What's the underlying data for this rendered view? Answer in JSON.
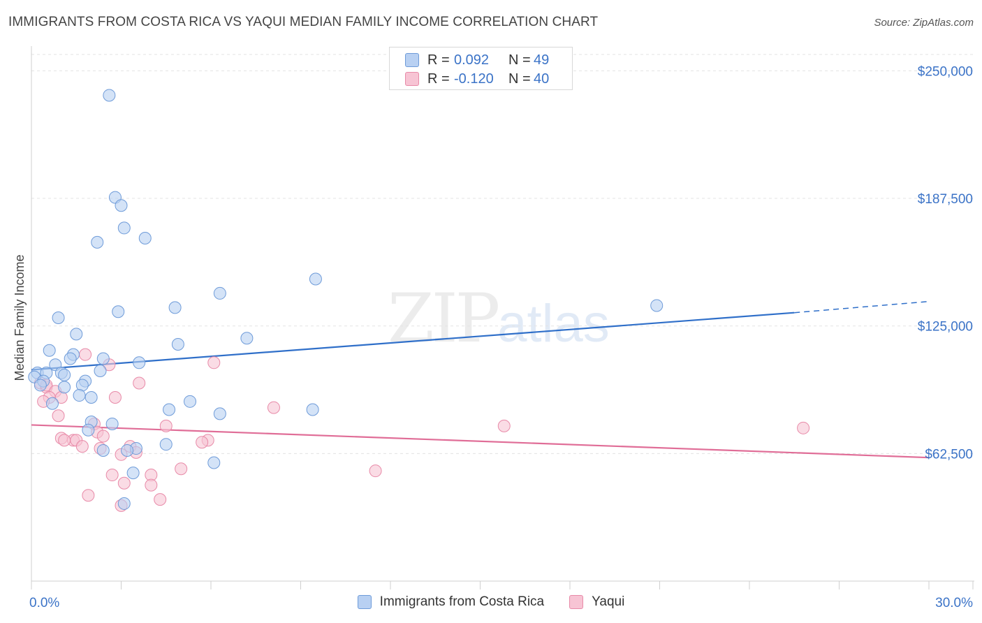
{
  "header": {
    "title": "IMMIGRANTS FROM COSTA RICA VS YAQUI MEDIAN FAMILY INCOME CORRELATION CHART",
    "source": "Source: ZipAtlas.com"
  },
  "watermark": {
    "zip": "ZIP",
    "atlas": "atlas"
  },
  "legend_top": {
    "rows": [
      {
        "r_label": "R =",
        "r_value": "0.092",
        "n_label": "N =",
        "n_value": "49"
      },
      {
        "r_label": "R =",
        "r_value": "-0.120",
        "n_label": "N =",
        "n_value": "40"
      }
    ]
  },
  "legend_bottom": {
    "items": [
      {
        "label": "Immigrants from Costa Rica"
      },
      {
        "label": "Yaqui"
      }
    ]
  },
  "colors": {
    "blue_fill": "#b8d0f2",
    "blue_stroke": "#6e9bd9",
    "blue_line": "#2f6fc9",
    "pink_fill": "#f7c4d4",
    "pink_stroke": "#e88aa8",
    "pink_line": "#e06d97",
    "tick_text": "#3b73c7",
    "grid": "#e3e3e3"
  },
  "chart_data": {
    "type": "scatter",
    "title": "IMMIGRANTS FROM COSTA RICA VS YAQUI MEDIAN FAMILY INCOME CORRELATION CHART",
    "xlabel": "",
    "ylabel": "Median Family Income",
    "xlim": [
      0,
      30
    ],
    "ylim": [
      0,
      258000
    ],
    "x_tick_labels": [
      "0.0%",
      "30.0%"
    ],
    "y_ticks": [
      62500,
      125000,
      187500,
      250000
    ],
    "y_tick_labels": [
      "$62,500",
      "$125,000",
      "$187,500",
      "$250,000"
    ],
    "grid": true,
    "legend_placement": "top-center",
    "series": [
      {
        "name": "Immigrants from Costa Rica",
        "r": 0.092,
        "n": 49,
        "points": [
          [
            2.6,
            238000
          ],
          [
            2.8,
            188000
          ],
          [
            3.0,
            184000
          ],
          [
            3.1,
            173000
          ],
          [
            2.2,
            166000
          ],
          [
            3.8,
            168000
          ],
          [
            9.5,
            148000
          ],
          [
            6.3,
            141000
          ],
          [
            20.9,
            135000
          ],
          [
            4.8,
            134000
          ],
          [
            2.9,
            132000
          ],
          [
            0.9,
            129000
          ],
          [
            1.5,
            121000
          ],
          [
            7.2,
            119000
          ],
          [
            4.9,
            116000
          ],
          [
            0.6,
            113000
          ],
          [
            1.4,
            111000
          ],
          [
            1.3,
            109000
          ],
          [
            2.4,
            109000
          ],
          [
            3.6,
            107000
          ],
          [
            0.8,
            106000
          ],
          [
            2.3,
            103000
          ],
          [
            1.0,
            102000
          ],
          [
            0.2,
            102000
          ],
          [
            0.5,
            102000
          ],
          [
            1.1,
            101000
          ],
          [
            0.1,
            100000
          ],
          [
            0.4,
            98000
          ],
          [
            1.8,
            98000
          ],
          [
            1.7,
            96000
          ],
          [
            0.3,
            96000
          ],
          [
            1.1,
            95000
          ],
          [
            1.6,
            91000
          ],
          [
            2.0,
            90000
          ],
          [
            5.3,
            88000
          ],
          [
            0.7,
            87000
          ],
          [
            9.4,
            84000
          ],
          [
            4.6,
            84000
          ],
          [
            6.3,
            82000
          ],
          [
            2.0,
            78000
          ],
          [
            2.7,
            77000
          ],
          [
            1.9,
            74000
          ],
          [
            4.5,
            67000
          ],
          [
            3.5,
            65000
          ],
          [
            3.2,
            64000
          ],
          [
            2.4,
            64000
          ],
          [
            6.1,
            58000
          ],
          [
            3.4,
            53000
          ],
          [
            3.1,
            38000
          ]
        ],
        "trend": {
          "x": [
            0,
            25.5
          ],
          "y": [
            103500,
            131500
          ],
          "dashed_to_x": 30,
          "dashed_to_y": 137000
        }
      },
      {
        "name": "Yaqui",
        "r": -0.12,
        "n": 40,
        "points": [
          [
            1.8,
            111000
          ],
          [
            2.6,
            106000
          ],
          [
            6.1,
            107000
          ],
          [
            0.3,
            97000
          ],
          [
            0.5,
            95000
          ],
          [
            3.6,
            97000
          ],
          [
            0.5,
            96000
          ],
          [
            0.8,
            93000
          ],
          [
            0.6,
            90000
          ],
          [
            1.0,
            90000
          ],
          [
            2.8,
            90000
          ],
          [
            0.4,
            88000
          ],
          [
            8.1,
            85000
          ],
          [
            0.9,
            81000
          ],
          [
            2.1,
            77000
          ],
          [
            4.5,
            76000
          ],
          [
            15.8,
            76000
          ],
          [
            25.8,
            75000
          ],
          [
            2.2,
            73000
          ],
          [
            2.4,
            71000
          ],
          [
            1.0,
            70000
          ],
          [
            1.4,
            69000
          ],
          [
            1.1,
            69000
          ],
          [
            1.5,
            69000
          ],
          [
            5.9,
            69000
          ],
          [
            5.7,
            68000
          ],
          [
            3.3,
            66000
          ],
          [
            1.7,
            66000
          ],
          [
            2.3,
            65000
          ],
          [
            3.5,
            63000
          ],
          [
            3.0,
            62000
          ],
          [
            5.0,
            55000
          ],
          [
            11.5,
            54000
          ],
          [
            2.7,
            52000
          ],
          [
            4.0,
            52000
          ],
          [
            3.1,
            48000
          ],
          [
            4.0,
            47000
          ],
          [
            1.9,
            42000
          ],
          [
            4.3,
            40000
          ],
          [
            3.0,
            37000
          ]
        ],
        "trend": {
          "x": [
            0,
            30
          ],
          "y": [
            76500,
            60500
          ]
        }
      }
    ]
  }
}
